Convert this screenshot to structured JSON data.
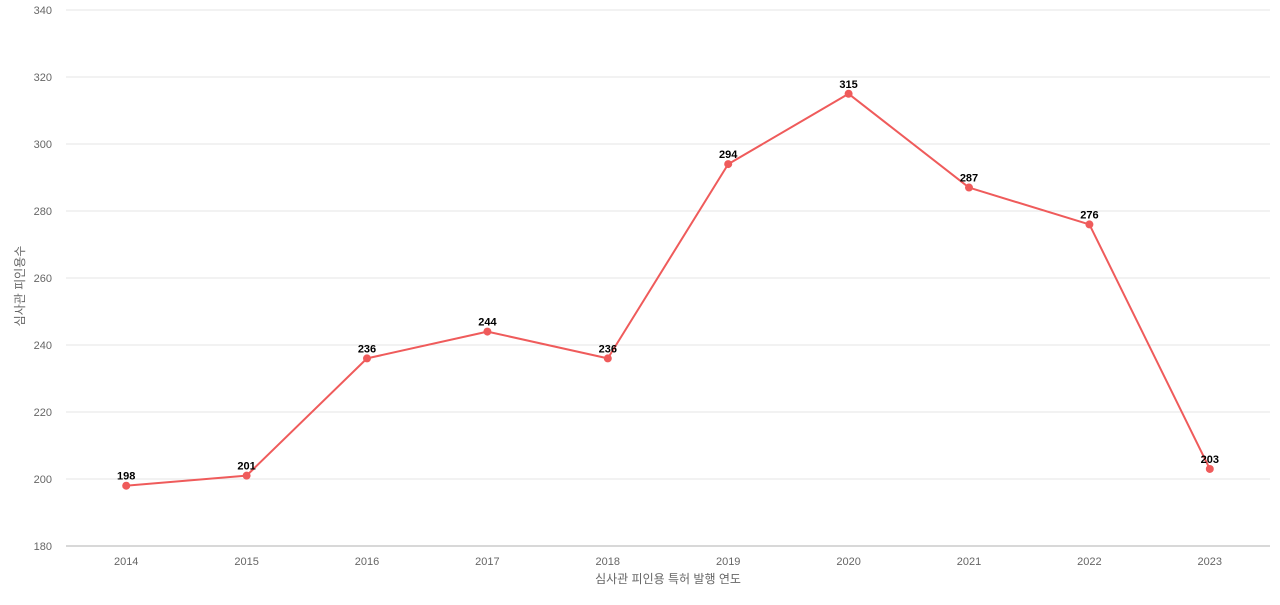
{
  "chart_data": {
    "type": "line",
    "title": "",
    "xlabel": "심사관 피인용 특허 발행 연도",
    "ylabel": "심사관 피인용수",
    "categories": [
      "2014",
      "2015",
      "2016",
      "2017",
      "2018",
      "2019",
      "2020",
      "2021",
      "2022",
      "2023"
    ],
    "series": [
      {
        "name": "",
        "values": [
          198,
          201,
          236,
          244,
          236,
          294,
          315,
          287,
          276,
          203
        ],
        "color": "#ef5b5b"
      }
    ],
    "ylim": [
      180,
      340
    ],
    "yticks": [
      180,
      200,
      220,
      240,
      260,
      280,
      300,
      320,
      340
    ],
    "grid": true,
    "data_labels": true,
    "legend": "none"
  }
}
